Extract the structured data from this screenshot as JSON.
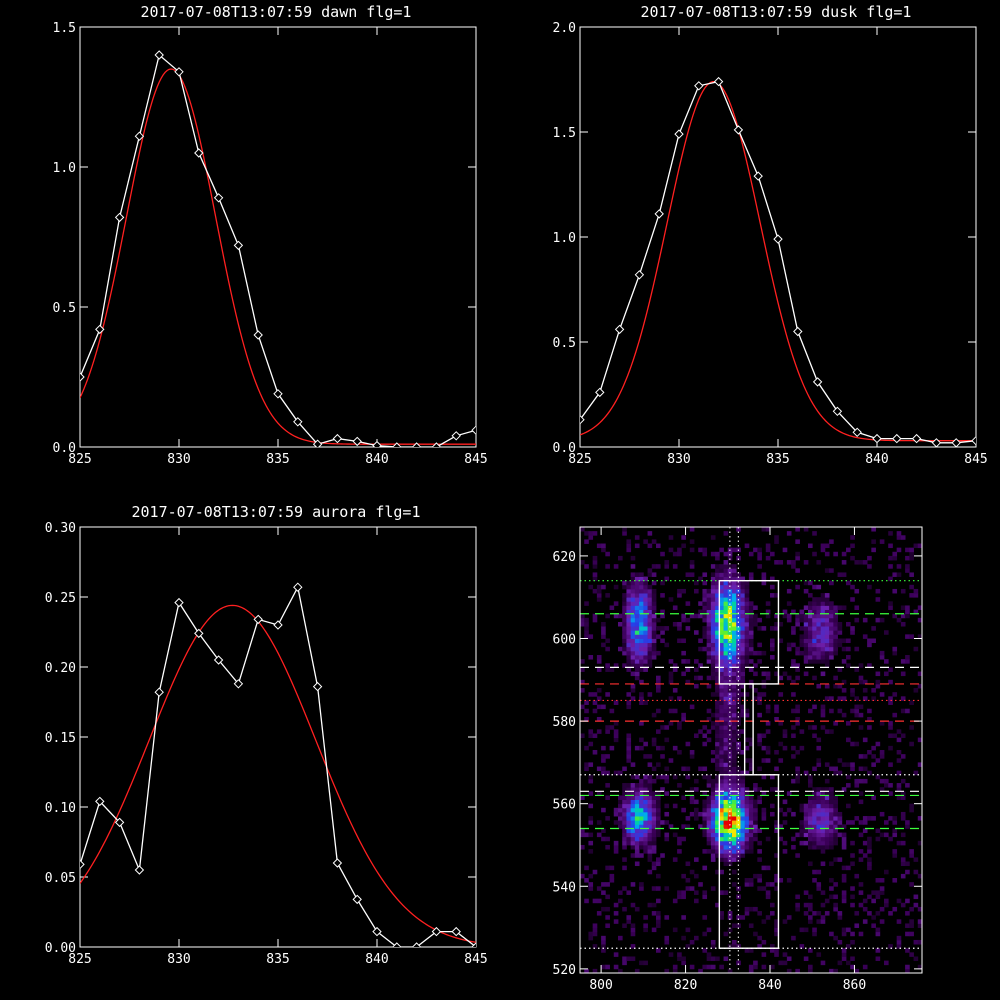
{
  "chart_data": [
    {
      "type": "line",
      "title": "2017-07-08T13:07:59 dawn flg=1",
      "xlim": [
        825,
        845
      ],
      "ylim": [
        0,
        1.5
      ],
      "xticks": [
        "825",
        "830",
        "835",
        "840",
        "845"
      ],
      "yticks": [
        "0.0",
        "0.5",
        "1.0",
        "1.5"
      ],
      "series": [
        {
          "role": "data",
          "color": "#ffffff",
          "markers": "diamond",
          "x": [
            825,
            826,
            827,
            828,
            829,
            830,
            831,
            832,
            833,
            834,
            835,
            836,
            837,
            838,
            839,
            840,
            841,
            842,
            843,
            844,
            845
          ],
          "y": [
            0.25,
            0.42,
            0.82,
            1.11,
            1.4,
            1.34,
            1.05,
            0.89,
            0.72,
            0.4,
            0.19,
            0.09,
            0.01,
            0.03,
            0.02,
            0.005,
            0.0,
            0.0,
            0.0,
            0.04,
            0.06
          ]
        },
        {
          "role": "fit",
          "color": "#ff2020",
          "peak": 1.34,
          "center": 829.6,
          "sigma": 2.25,
          "floor": 0.01
        }
      ]
    },
    {
      "type": "line",
      "title": "2017-07-08T13:07:59 dusk flg=1",
      "xlim": [
        825,
        845
      ],
      "ylim": [
        0,
        2.0
      ],
      "xticks": [
        "825",
        "830",
        "835",
        "840",
        "845"
      ],
      "yticks": [
        "0.0",
        "0.5",
        "1.0",
        "1.5",
        "2.0"
      ],
      "series": [
        {
          "role": "data",
          "color": "#ffffff",
          "markers": "diamond",
          "x": [
            825,
            826,
            827,
            828,
            829,
            830,
            831,
            832,
            833,
            834,
            835,
            836,
            837,
            838,
            839,
            840,
            841,
            842,
            843,
            844,
            845
          ],
          "y": [
            0.13,
            0.26,
            0.56,
            0.82,
            1.11,
            1.49,
            1.72,
            1.74,
            1.51,
            1.29,
            0.99,
            0.55,
            0.31,
            0.17,
            0.07,
            0.04,
            0.04,
            0.04,
            0.02,
            0.02,
            0.03
          ]
        },
        {
          "role": "fit",
          "color": "#ff2020",
          "peak": 1.71,
          "center": 831.75,
          "sigma": 2.35,
          "floor": 0.03
        }
      ]
    },
    {
      "type": "line",
      "title": "2017-07-08T13:07:59 aurora flg=1",
      "xlim": [
        825,
        845
      ],
      "ylim": [
        0,
        0.3
      ],
      "xticks": [
        "825",
        "830",
        "835",
        "840",
        "845"
      ],
      "yticks": [
        "0.00",
        "0.05",
        "0.10",
        "0.15",
        "0.20",
        "0.25",
        "0.30"
      ],
      "series": [
        {
          "role": "data",
          "color": "#ffffff",
          "markers": "diamond",
          "x": [
            825,
            826,
            827,
            828,
            829,
            830,
            831,
            832,
            833,
            834,
            835,
            836,
            837,
            838,
            839,
            840,
            841,
            842,
            843,
            844,
            845
          ],
          "y": [
            0.059,
            0.104,
            0.089,
            0.055,
            0.182,
            0.246,
            0.224,
            0.205,
            0.188,
            0.234,
            0.23,
            0.257,
            0.186,
            0.06,
            0.034,
            0.011,
            0.0,
            0.0,
            0.011,
            0.011,
            0.0
          ]
        },
        {
          "role": "fit",
          "color": "#ff2020",
          "peak": 0.244,
          "center": 832.7,
          "sigma": 4.2,
          "floor": 0.0
        }
      ]
    },
    {
      "type": "heatmap",
      "xlim": [
        795,
        876
      ],
      "ylim": [
        519,
        627
      ],
      "xticks": [
        "800",
        "820",
        "840",
        "860"
      ],
      "yticks": [
        "520",
        "540",
        "560",
        "580",
        "600",
        "620"
      ],
      "blobs": [
        {
          "x": 809,
          "y": 604,
          "sx": 2.2,
          "sy": 6.0,
          "amp": 0.5
        },
        {
          "x": 809,
          "y": 557,
          "sx": 2.5,
          "sy": 4.2,
          "amp": 0.55
        },
        {
          "x": 830,
          "y": 604,
          "sx": 2.6,
          "sy": 6.5,
          "amp": 0.78
        },
        {
          "x": 830.5,
          "y": 556,
          "sx": 2.8,
          "sy": 4.6,
          "amp": 1.0
        },
        {
          "x": 852,
          "y": 602,
          "sx": 2.8,
          "sy": 5.0,
          "amp": 0.28
        },
        {
          "x": 852,
          "y": 556,
          "sx": 2.8,
          "sy": 4.5,
          "amp": 0.3
        },
        {
          "x": 830,
          "y": 580,
          "sx": 2.5,
          "sy": 12,
          "amp": 0.14
        }
      ],
      "boxes": [
        {
          "x0": 828,
          "x1": 842,
          "y0": 589,
          "y1": 614
        },
        {
          "x0": 834,
          "x1": 836,
          "y0": 567,
          "y1": 589
        },
        {
          "x0": 828,
          "x1": 842,
          "y0": 525,
          "y1": 567
        }
      ],
      "hlines": [
        {
          "y": 614,
          "color": "#3cff3c",
          "dash": "dot"
        },
        {
          "y": 606,
          "color": "#3cff3c",
          "dash": "dash"
        },
        {
          "y": 593,
          "color": "#ffffff",
          "dash": "dash"
        },
        {
          "y": 589,
          "color": "#ff3030",
          "dash": "dash"
        },
        {
          "y": 585,
          "color": "#ff3030",
          "dash": "dot"
        },
        {
          "y": 580,
          "color": "#ff3030",
          "dash": "dash"
        },
        {
          "y": 567,
          "color": "#ffffff",
          "dash": "dot"
        },
        {
          "y": 563,
          "color": "#ffffff",
          "dash": "dash"
        },
        {
          "y": 562,
          "color": "#3cff3c",
          "dash": "dash"
        },
        {
          "y": 554,
          "color": "#3cff3c",
          "dash": "dash"
        },
        {
          "y": 525,
          "color": "#ffffff",
          "dash": "dot"
        }
      ],
      "vlines": [
        {
          "x": 830.5,
          "color": "#ffffff",
          "dash": "dot"
        },
        {
          "x": 832.5,
          "color": "#ffffff",
          "dash": "dot"
        }
      ]
    }
  ]
}
